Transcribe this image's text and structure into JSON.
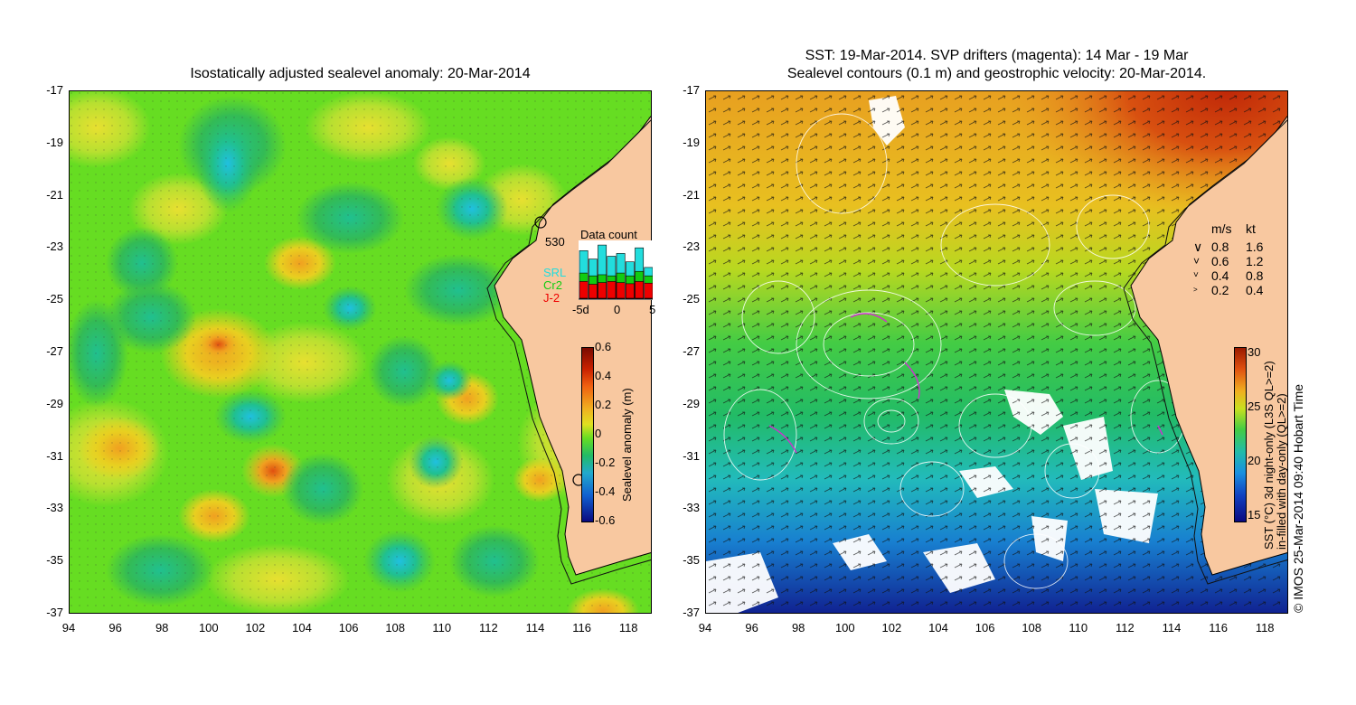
{
  "left_panel": {
    "title": "Isostatically adjusted sealevel anomaly: 20-Mar-2014",
    "y_ticks": [
      "-17",
      "-19",
      "-21",
      "-23",
      "-25",
      "-27",
      "-29",
      "-31",
      "-33",
      "-35",
      "-37"
    ],
    "x_ticks": [
      "94",
      "96",
      "98",
      "100",
      "102",
      "104",
      "106",
      "108",
      "110",
      "112",
      "114",
      "116",
      "118"
    ],
    "colorbar": {
      "label": "Sealevel anomaly (m)",
      "ticks": [
        "0.6",
        "0.4",
        "0.2",
        "0",
        "-0.2",
        "-0.4",
        "-0.6"
      ]
    },
    "data_count": {
      "title": "Data count",
      "max_label": "530",
      "legend": [
        {
          "name": "SRL",
          "color": "#22dddd"
        },
        {
          "name": "Cr2",
          "color": "#11cc11"
        },
        {
          "name": "J-2",
          "color": "#ee0000"
        }
      ],
      "x_ticks": [
        "-5d",
        "0",
        "5"
      ],
      "bars": [
        {
          "j2": 0.3,
          "cr2": 0.45,
          "srl": 0.85
        },
        {
          "j2": 0.25,
          "cr2": 0.4,
          "srl": 0.7
        },
        {
          "j2": 0.28,
          "cr2": 0.42,
          "srl": 0.95
        },
        {
          "j2": 0.3,
          "cr2": 0.4,
          "srl": 0.75
        },
        {
          "j2": 0.28,
          "cr2": 0.45,
          "srl": 0.8
        },
        {
          "j2": 0.26,
          "cr2": 0.4,
          "srl": 0.65
        },
        {
          "j2": 0.3,
          "cr2": 0.48,
          "srl": 0.9
        },
        {
          "j2": 0.27,
          "cr2": 0.4,
          "srl": 0.55
        }
      ]
    }
  },
  "right_panel": {
    "title_line1": "SST: 19-Mar-2014. SVP drifters (magenta): 14 Mar - 19 Mar",
    "title_line2": "Sealevel contours (0.1 m) and geostrophic velocity: 20-Mar-2014.",
    "y_ticks": [
      "-17",
      "-19",
      "-21",
      "-23",
      "-25",
      "-27",
      "-29",
      "-31",
      "-33",
      "-35",
      "-37"
    ],
    "x_ticks": [
      "94",
      "96",
      "98",
      "100",
      "102",
      "104",
      "106",
      "108",
      "110",
      "112",
      "114",
      "116",
      "118"
    ],
    "speed_legend": {
      "header_ms": "m/s",
      "header_kt": "kt",
      "rows": [
        {
          "ms": "0.8",
          "kt": "1.6"
        },
        {
          "ms": "0.6",
          "kt": "1.2"
        },
        {
          "ms": "0.4",
          "kt": "0.8"
        },
        {
          "ms": "0.2",
          "kt": "0.4"
        }
      ]
    },
    "colorbar": {
      "label_line1": "SST (°C) 3d night-only (L3S QL>=2)",
      "label_line2": "in-filled with day-only (QL>=2)",
      "ticks": [
        "30",
        "25",
        "20",
        "15"
      ]
    },
    "credit": "© IMOS 25-Mar-2014 09:40 Hobart Time"
  },
  "colors": {
    "land": "#f8c8a0",
    "sla_mid": "#55dd22",
    "sst_warm": "#c83010",
    "sst_cool": "#1040c0"
  }
}
